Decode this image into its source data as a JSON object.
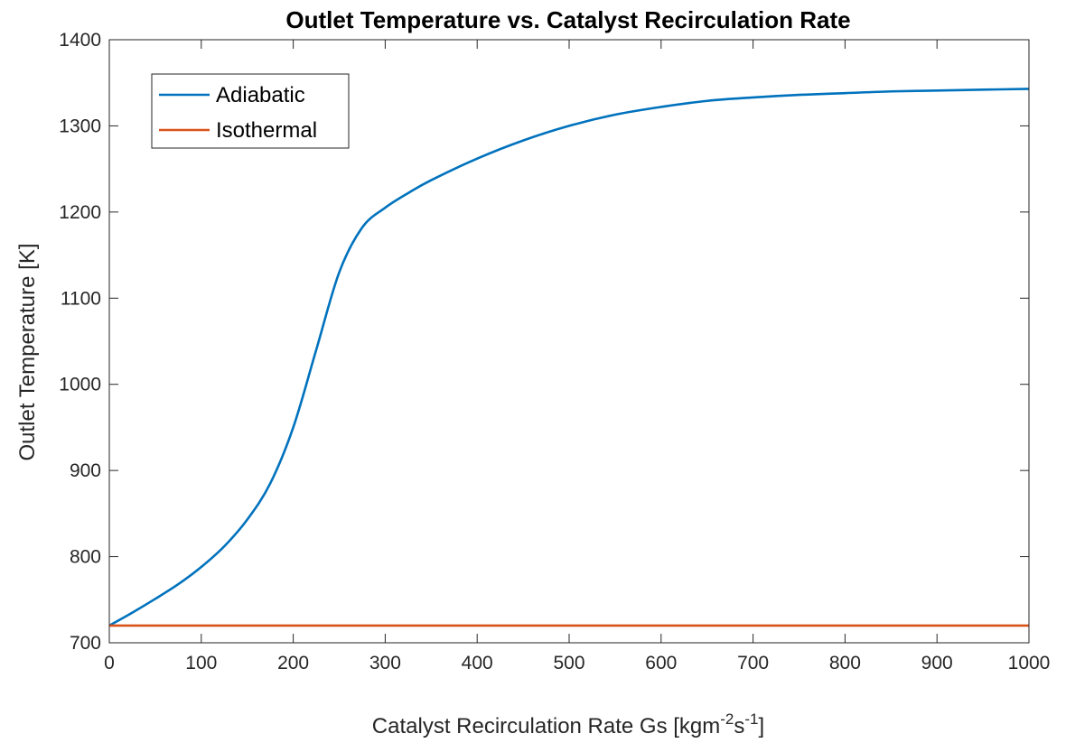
{
  "chart_data": {
    "type": "line",
    "title": "Outlet Temperature vs. Catalyst Recirculation Rate",
    "xlabel": {
      "base": "Catalyst Recirculation Rate Gs [kgm",
      "sup1": "-2",
      "mid": "s",
      "sup2": "-1",
      "end": "]"
    },
    "ylabel": "Outlet Temperature [K]",
    "xlim": [
      0,
      1000
    ],
    "ylim": [
      700,
      1400
    ],
    "xticks": [
      0,
      100,
      200,
      300,
      400,
      500,
      600,
      700,
      800,
      900,
      1000
    ],
    "yticks": [
      700,
      800,
      900,
      1000,
      1100,
      1200,
      1300,
      1400
    ],
    "grid": false,
    "legend_position": "top-left",
    "x": [
      0,
      25,
      50,
      75,
      100,
      125,
      150,
      175,
      200,
      225,
      250,
      275,
      300,
      325,
      350,
      400,
      450,
      500,
      550,
      600,
      650,
      700,
      750,
      800,
      850,
      900,
      950,
      1000
    ],
    "series": [
      {
        "name": "Adiabatic",
        "color": "#0072BD",
        "values": [
          720,
          735,
          751,
          768,
          788,
          812,
          843,
          885,
          950,
          1040,
          1130,
          1182,
          1205,
          1222,
          1237,
          1262,
          1283,
          1300,
          1313,
          1322,
          1329,
          1333,
          1336,
          1338,
          1340,
          1341,
          1342,
          1343
        ]
      },
      {
        "name": "Isothermal",
        "color": "#D95319",
        "values": [
          720,
          720,
          720,
          720,
          720,
          720,
          720,
          720,
          720,
          720,
          720,
          720,
          720,
          720,
          720,
          720,
          720,
          720,
          720,
          720,
          720,
          720,
          720,
          720,
          720,
          720,
          720,
          720
        ]
      }
    ]
  }
}
